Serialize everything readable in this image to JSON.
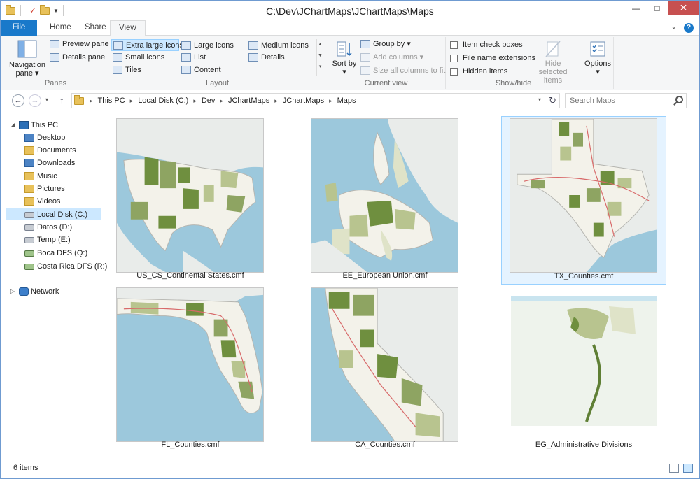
{
  "window": {
    "title": "C:\\Dev\\JChartMaps\\JChartMaps\\Maps"
  },
  "ribbon": {
    "tabs": [
      {
        "label": "File"
      },
      {
        "label": "Home"
      },
      {
        "label": "Share"
      },
      {
        "label": "View"
      }
    ],
    "panes": {
      "label": "Panes",
      "navigation_pane": "Navigation pane",
      "preview_pane": "Preview pane",
      "details_pane": "Details pane"
    },
    "layout": {
      "label": "Layout",
      "extra_large_icons": "Extra large icons",
      "large_icons": "Large icons",
      "medium_icons": "Medium icons",
      "small_icons": "Small icons",
      "list": "List",
      "details": "Details",
      "tiles": "Tiles",
      "content": "Content"
    },
    "current_view": {
      "label": "Current view",
      "sort_by": "Sort by",
      "group_by": "Group by",
      "add_columns": "Add columns",
      "size_all_columns": "Size all columns to fit"
    },
    "show_hide": {
      "label": "Show/hide",
      "item_check_boxes": "Item check boxes",
      "file_name_extensions": "File name extensions",
      "hidden_items": "Hidden items",
      "hide_selected_items": "Hide selected items"
    },
    "options": {
      "label": "Options"
    }
  },
  "address": {
    "crumbs": [
      "This PC",
      "Local Disk (C:)",
      "Dev",
      "JChartMaps",
      "JChartMaps",
      "Maps"
    ],
    "search_placeholder": "Search Maps"
  },
  "nav": {
    "items": [
      {
        "label": "This PC",
        "icon": "computer-icon"
      },
      {
        "label": "Desktop",
        "icon": "folder-icon"
      },
      {
        "label": "Documents",
        "icon": "folder-icon"
      },
      {
        "label": "Downloads",
        "icon": "folder-icon"
      },
      {
        "label": "Music",
        "icon": "folder-icon"
      },
      {
        "label": "Pictures",
        "icon": "folder-icon"
      },
      {
        "label": "Videos",
        "icon": "folder-icon"
      },
      {
        "label": "Local Disk (C:)",
        "icon": "drive-icon"
      },
      {
        "label": "Datos (D:)",
        "icon": "drive-icon"
      },
      {
        "label": "Temp (E:)",
        "icon": "drive-icon"
      },
      {
        "label": "Boca DFS (Q:)",
        "icon": "network-drive-icon"
      },
      {
        "label": "Costa Rica DFS (R:)",
        "icon": "network-drive-icon"
      },
      {
        "label": "Network",
        "icon": "network-icon"
      }
    ]
  },
  "files": [
    {
      "name": "US_CS_Continental States.cmf"
    },
    {
      "name": "EE_European Union.cmf"
    },
    {
      "name": "TX_Counties.cmf"
    },
    {
      "name": "FL_Counties.cmf"
    },
    {
      "name": "CA_Counties.cmf"
    },
    {
      "name": "EG_Administrative Divisions"
    }
  ],
  "status": {
    "item_count": "6 items"
  },
  "colors": {
    "accent": "#1979ca",
    "selection": "#cce8ff",
    "map_water": "#b8dbe8",
    "map_land": "#f0efe6",
    "map_green": "#6f8f3f"
  }
}
